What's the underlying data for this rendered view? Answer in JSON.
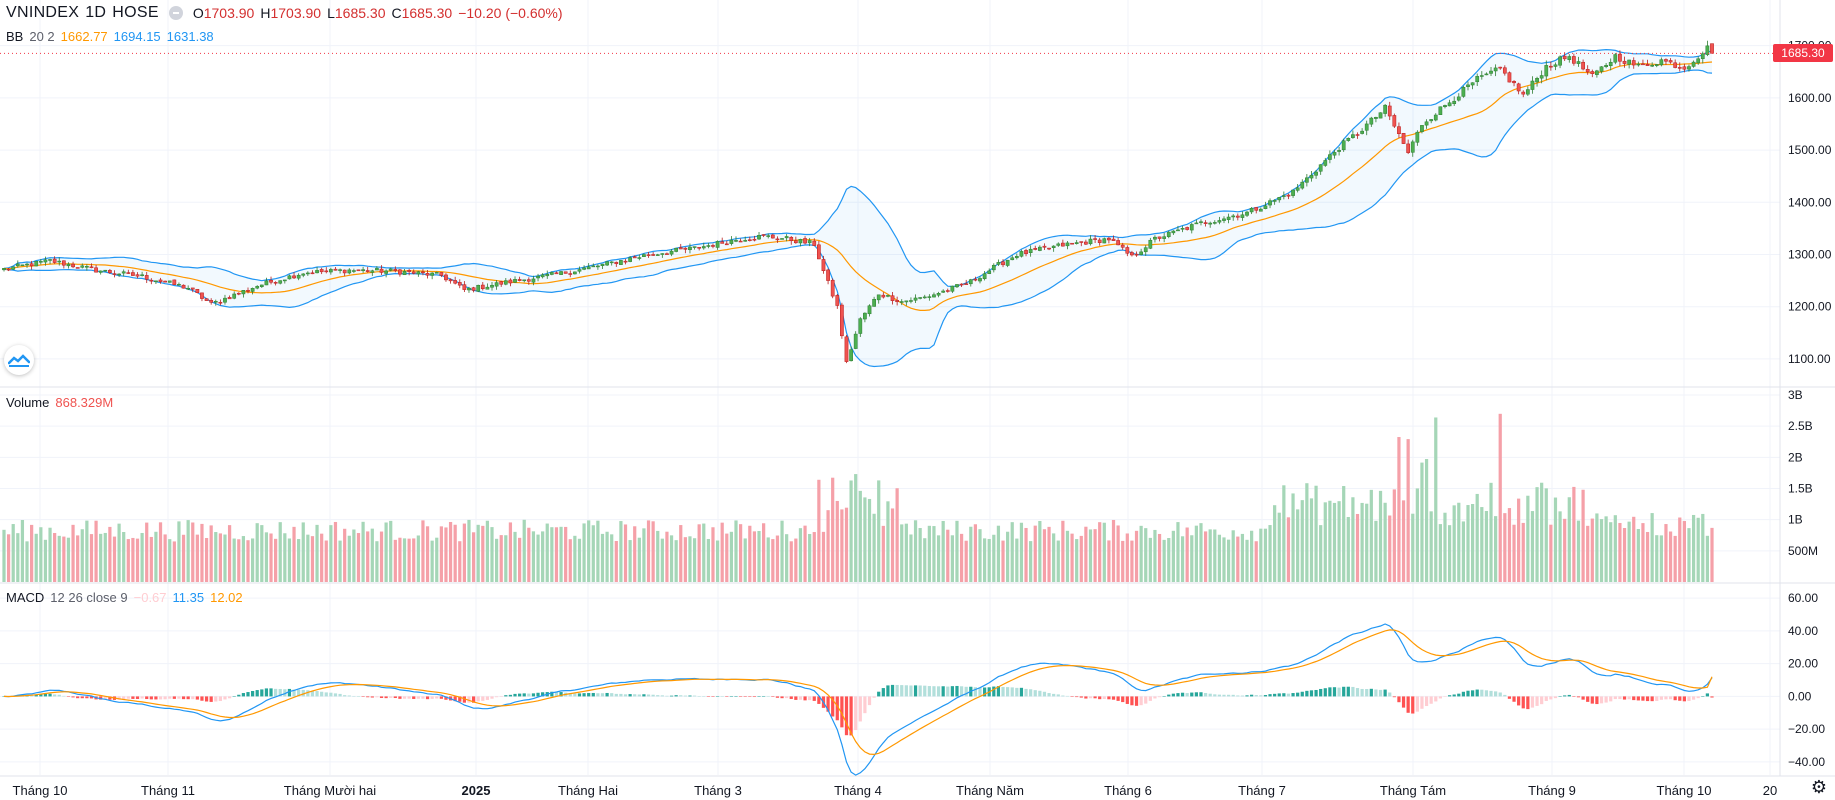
{
  "header": {
    "symbol": "VNINDEX",
    "interval": "1D",
    "exchange": "HOSE",
    "ohlc": {
      "o_label": "O",
      "o": "1703.90",
      "h_label": "H",
      "h": "1703.90",
      "l_label": "L",
      "l": "1685.30",
      "c_label": "C",
      "c": "1685.30",
      "change": "−10.20 (−0.60%)"
    }
  },
  "bb_legend": {
    "name": "BB",
    "params": "20 2",
    "basis": "1662.77",
    "upper": "1694.15",
    "lower": "1631.38"
  },
  "volume_legend": {
    "name": "Volume",
    "value": "868.329M"
  },
  "macd_legend": {
    "name": "MACD",
    "params": "12 26 close 9",
    "hist": "−0.67",
    "macd": "11.35",
    "signal": "12.02"
  },
  "last_price_tag": "1685.30",
  "colors": {
    "up": "#4caf50",
    "down": "#ef5350",
    "up_vol": "#a5d6b7",
    "down_vol": "#f5a0a8",
    "bb_band": "#2196f3",
    "bb_basis": "#ff9800",
    "macd": "#2196f3",
    "signal": "#ff9800",
    "hist_up_strong": "#26a69a",
    "hist_up_weak": "#b2dfdb",
    "hist_down_strong": "#ff5252",
    "hist_down_weak": "#ffcdd2"
  },
  "chart_data": [
    {
      "type": "candlestick",
      "title": "VNINDEX 1D HOSE",
      "ylim": [
        1050,
        1730
      ],
      "y_ticks": [
        "1700.00",
        "1600.00",
        "1500.00",
        "1400.00",
        "1300.00",
        "1200.00",
        "1100.00"
      ],
      "x_ticks": [
        "Tháng 10",
        "Tháng 11",
        "Tháng Mười hai",
        "2025",
        "Tháng Hai",
        "Tháng 3",
        "Tháng 4",
        "Tháng Năm",
        "Tháng 6",
        "Tháng 7",
        "Tháng Tám",
        "Tháng 9",
        "Tháng 10",
        "20"
      ],
      "close_anchors": [
        [
          0,
          1272
        ],
        [
          10,
          1288
        ],
        [
          20,
          1270
        ],
        [
          30,
          1258
        ],
        [
          40,
          1236
        ],
        [
          45,
          1205
        ],
        [
          55,
          1240
        ],
        [
          65,
          1265
        ],
        [
          75,
          1270
        ],
        [
          85,
          1268
        ],
        [
          95,
          1260
        ],
        [
          100,
          1232
        ],
        [
          110,
          1248
        ],
        [
          120,
          1262
        ],
        [
          130,
          1280
        ],
        [
          140,
          1300
        ],
        [
          150,
          1312
        ],
        [
          160,
          1330
        ],
        [
          165,
          1335
        ],
        [
          170,
          1330
        ],
        [
          176,
          1320
        ],
        [
          178,
          1268
        ],
        [
          181,
          1200
        ],
        [
          183,
          1092
        ],
        [
          186,
          1175
        ],
        [
          190,
          1225
        ],
        [
          195,
          1210
        ],
        [
          200,
          1218
        ],
        [
          205,
          1232
        ],
        [
          210,
          1248
        ],
        [
          215,
          1275
        ],
        [
          220,
          1300
        ],
        [
          230,
          1318
        ],
        [
          240,
          1330
        ],
        [
          245,
          1295
        ],
        [
          250,
          1330
        ],
        [
          260,
          1360
        ],
        [
          270,
          1380
        ],
        [
          280,
          1420
        ],
        [
          290,
          1505
        ],
        [
          295,
          1540
        ],
        [
          300,
          1580
        ],
        [
          305,
          1495
        ],
        [
          308,
          1550
        ],
        [
          315,
          1600
        ],
        [
          320,
          1635
        ],
        [
          325,
          1655
        ],
        [
          330,
          1605
        ],
        [
          335,
          1660
        ],
        [
          340,
          1680
        ],
        [
          345,
          1640
        ],
        [
          350,
          1680
        ],
        [
          355,
          1660
        ],
        [
          360,
          1672
        ],
        [
          365,
          1658
        ],
        [
          370,
          1695
        ],
        [
          371,
          1685
        ]
      ],
      "bollinger": {
        "period": 20,
        "stddev": 2
      },
      "last": {
        "open": 1703.9,
        "high": 1703.9,
        "low": 1685.3,
        "close": 1685.3
      }
    },
    {
      "type": "bar",
      "title": "Volume",
      "ylim": [
        0,
        3000000000
      ],
      "y_ticks": [
        "3B",
        "2.5B",
        "2B",
        "1.5B",
        "1B",
        "500M"
      ],
      "last_value": 868329000
    },
    {
      "type": "bar+line",
      "title": "MACD 12 26 close 9",
      "ylim": [
        -48,
        65
      ],
      "y_ticks": [
        "60.00",
        "40.00",
        "20.00",
        "0.00",
        "−20.00",
        "−40.00"
      ],
      "last": {
        "hist": -0.67,
        "macd": 11.35,
        "signal": 12.02
      }
    }
  ]
}
